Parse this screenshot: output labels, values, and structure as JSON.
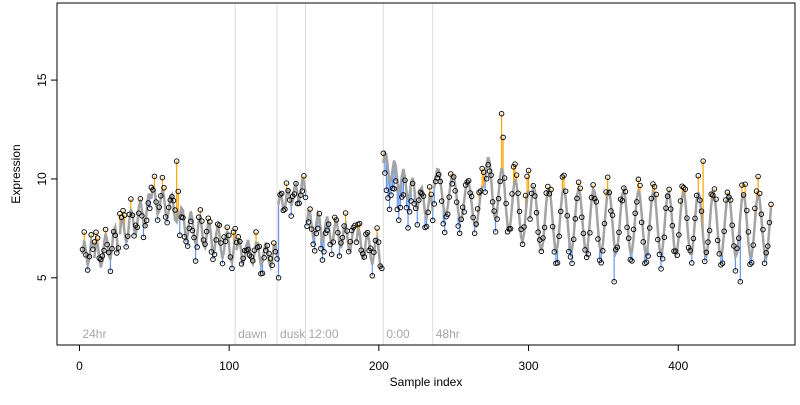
{
  "chart_data": {
    "type": "scatter",
    "title": "",
    "xlabel": "Sample index",
    "ylabel": "Expression",
    "xlim": [
      -15,
      478
    ],
    "ylim": [
      1.6,
      18.9
    ],
    "xticks": [
      0,
      100,
      200,
      300,
      400
    ],
    "yticks": [
      5,
      10,
      15
    ],
    "grid": false,
    "colors": {
      "trend_line": "#a3a3a3",
      "residual_above": "#ffa500",
      "residual_below": "#6495ed",
      "points_stroke": "#000000",
      "marker_lines": "#dddddd",
      "marker_labels": "#a6a6a6"
    },
    "markers": [
      {
        "x": 0,
        "label": "24hr"
      },
      {
        "x": 104,
        "label": "dawn"
      },
      {
        "x": 132,
        "label": "dusk"
      },
      {
        "x": 151,
        "label": "12:00"
      },
      {
        "x": 203,
        "label": "0:00"
      },
      {
        "x": 236,
        "label": "48hr"
      }
    ],
    "segments": [
      {
        "x_start": 2,
        "x_end": 9,
        "trend_start": 6.2,
        "trend_end": 6.3,
        "mean": 6.6,
        "amp": 0.8,
        "period": 5,
        "count": 7
      },
      {
        "x_start": 10,
        "x_end": 26,
        "trend_start": 6.0,
        "trend_end": 7.0,
        "mean": 6.6,
        "amp": 0.9,
        "period": 6,
        "count": 16
      },
      {
        "x_start": 27,
        "x_end": 47,
        "trend_start": 7.2,
        "trend_end": 8.6,
        "mean": 8.0,
        "amp": 0.9,
        "period": 6,
        "count": 20
      },
      {
        "x_start": 48,
        "x_end": 66,
        "trend_start": 9.0,
        "trend_end": 8.4,
        "mean": 9.1,
        "amp": 0.8,
        "period": 6,
        "count": 18
      },
      {
        "x_start": 67,
        "x_end": 104,
        "trend_start": 7.9,
        "trend_end": 6.4,
        "mean": 7.0,
        "amp": 0.9,
        "period": 6,
        "count": 36
      },
      {
        "x_start": 105,
        "x_end": 132,
        "trend_start": 6.4,
        "trend_end": 6.1,
        "mean": 6.3,
        "amp": 0.7,
        "period": 6,
        "count": 26
      },
      {
        "x_start": 133,
        "x_end": 151,
        "trend_start": 8.7,
        "trend_end": 9.6,
        "mean": 9.4,
        "amp": 0.6,
        "period": 5,
        "count": 18
      },
      {
        "x_start": 152,
        "x_end": 184,
        "trend_start": 7.8,
        "trend_end": 6.9,
        "mean": 7.0,
        "amp": 0.8,
        "period": 6,
        "count": 32
      },
      {
        "x_start": 185,
        "x_end": 202,
        "trend_start": 6.8,
        "trend_end": 6.2,
        "mean": 6.4,
        "amp": 0.9,
        "period": 6,
        "count": 17
      },
      {
        "x_start": 203,
        "x_end": 236,
        "trend_start": 10.8,
        "trend_end": 8.4,
        "mean": 8.4,
        "amp": 0.8,
        "period": 6,
        "count": 33
      },
      {
        "x_start": 237,
        "x_end": 270,
        "trend_start": 9.5,
        "trend_end": 8.5,
        "mean": 8.9,
        "amp": 1.3,
        "period": 10,
        "count": 34
      },
      {
        "x_start": 271,
        "x_end": 300,
        "trend_start": 9.8,
        "trend_end": 8.0,
        "mean": 9.2,
        "amp": 1.7,
        "period": 9,
        "count": 30
      },
      {
        "x_start": 301,
        "x_end": 462,
        "trend_start": 8.0,
        "trend_end": 7.6,
        "mean": 7.9,
        "amp": 1.9,
        "period": 10,
        "count": 150
      }
    ],
    "notable_points": [
      {
        "x": 65,
        "y": 10.9
      },
      {
        "x": 203,
        "y": 11.3
      },
      {
        "x": 282,
        "y": 13.3
      },
      {
        "x": 283,
        "y": 12.1
      },
      {
        "x": 417,
        "y": 10.9
      },
      {
        "x": 133,
        "y": 5.0
      },
      {
        "x": 196,
        "y": 5.1
      },
      {
        "x": 442,
        "y": 4.8
      },
      {
        "x": 357,
        "y": 4.8
      }
    ]
  }
}
